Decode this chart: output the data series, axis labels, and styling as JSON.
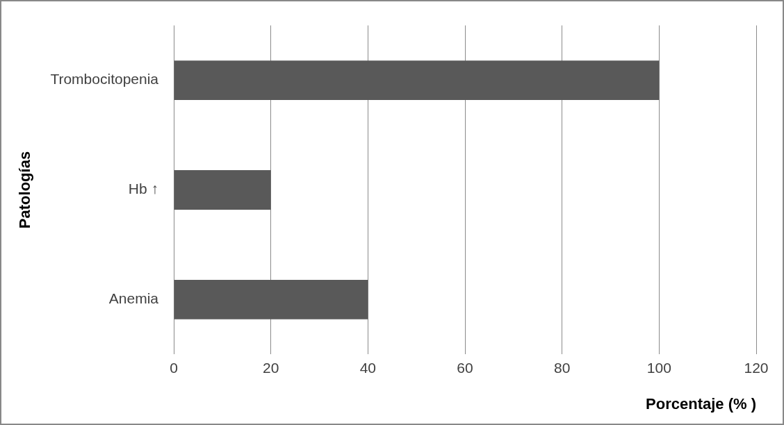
{
  "chart_data": {
    "type": "bar",
    "orientation": "horizontal",
    "categories": [
      "Trombocitopenia",
      "Hb ↑",
      "Anemia"
    ],
    "values": [
      100,
      20,
      40
    ],
    "color": "#595959",
    "xlim": [
      0,
      120
    ],
    "xticks": [
      0,
      20,
      40,
      60,
      80,
      100,
      120
    ],
    "grid": "x",
    "xlabel": "Porcentaje (% )",
    "ylabel": "Patologías"
  }
}
